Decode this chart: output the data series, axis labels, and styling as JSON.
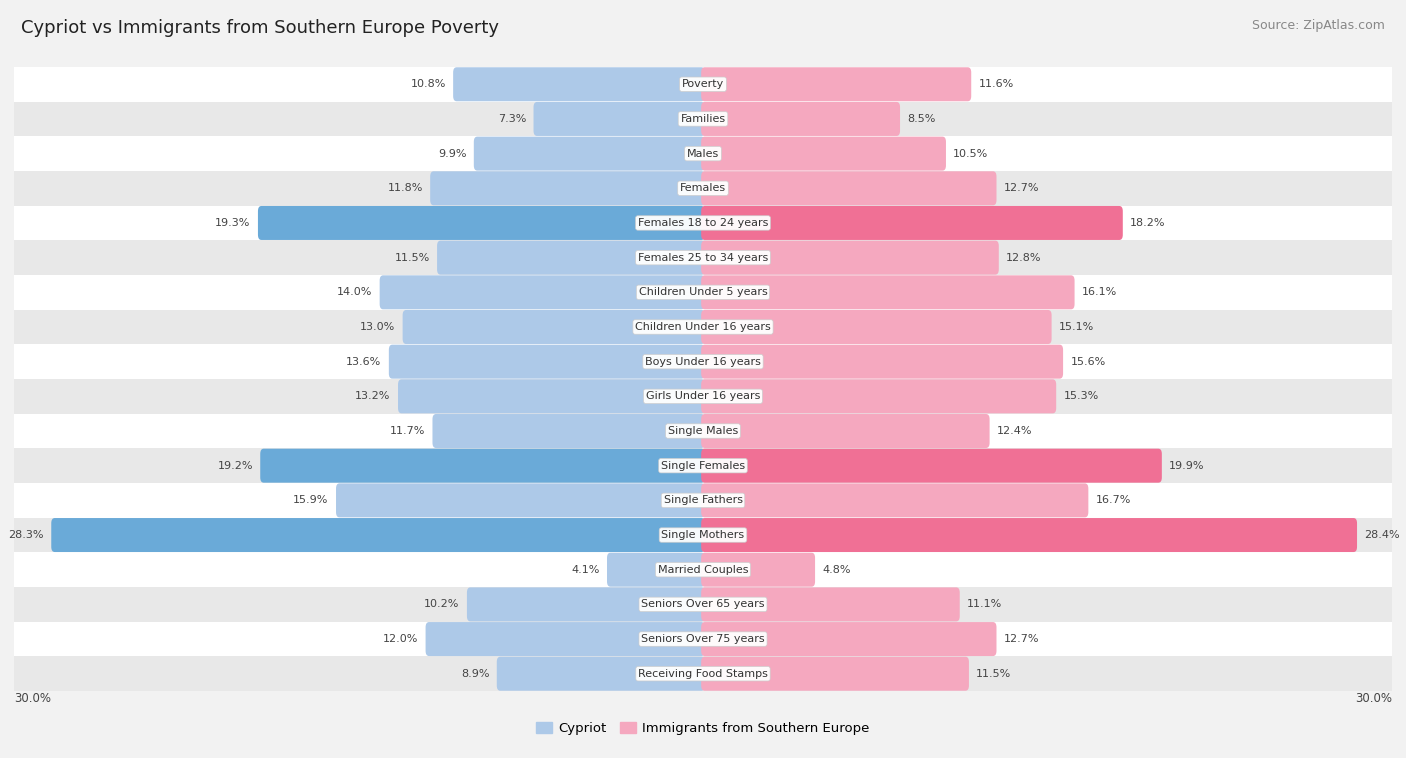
{
  "title": "Cypriot vs Immigrants from Southern Europe Poverty",
  "source": "Source: ZipAtlas.com",
  "categories": [
    "Poverty",
    "Families",
    "Males",
    "Females",
    "Females 18 to 24 years",
    "Females 25 to 34 years",
    "Children Under 5 years",
    "Children Under 16 years",
    "Boys Under 16 years",
    "Girls Under 16 years",
    "Single Males",
    "Single Females",
    "Single Fathers",
    "Single Mothers",
    "Married Couples",
    "Seniors Over 65 years",
    "Seniors Over 75 years",
    "Receiving Food Stamps"
  ],
  "cypriot": [
    10.8,
    7.3,
    9.9,
    11.8,
    19.3,
    11.5,
    14.0,
    13.0,
    13.6,
    13.2,
    11.7,
    19.2,
    15.9,
    28.3,
    4.1,
    10.2,
    12.0,
    8.9
  ],
  "immigrants": [
    11.6,
    8.5,
    10.5,
    12.7,
    18.2,
    12.8,
    16.1,
    15.1,
    15.6,
    15.3,
    12.4,
    19.9,
    16.7,
    28.4,
    4.8,
    11.1,
    12.7,
    11.5
  ],
  "cypriot_color_normal": "#adc9e8",
  "cypriot_color_highlight": "#6aaad8",
  "immigrant_color_normal": "#f5a8bf",
  "immigrant_color_highlight": "#f07095",
  "bg_color": "#f2f2f2",
  "row_color_even": "#ffffff",
  "row_color_odd": "#e8e8e8",
  "xlim": 30.0,
  "label_fontsize": 8,
  "value_fontsize": 8,
  "title_fontsize": 13,
  "source_fontsize": 9,
  "highlight_threshold_cypriot": 19.0,
  "highlight_threshold_immigrant": 18.0
}
